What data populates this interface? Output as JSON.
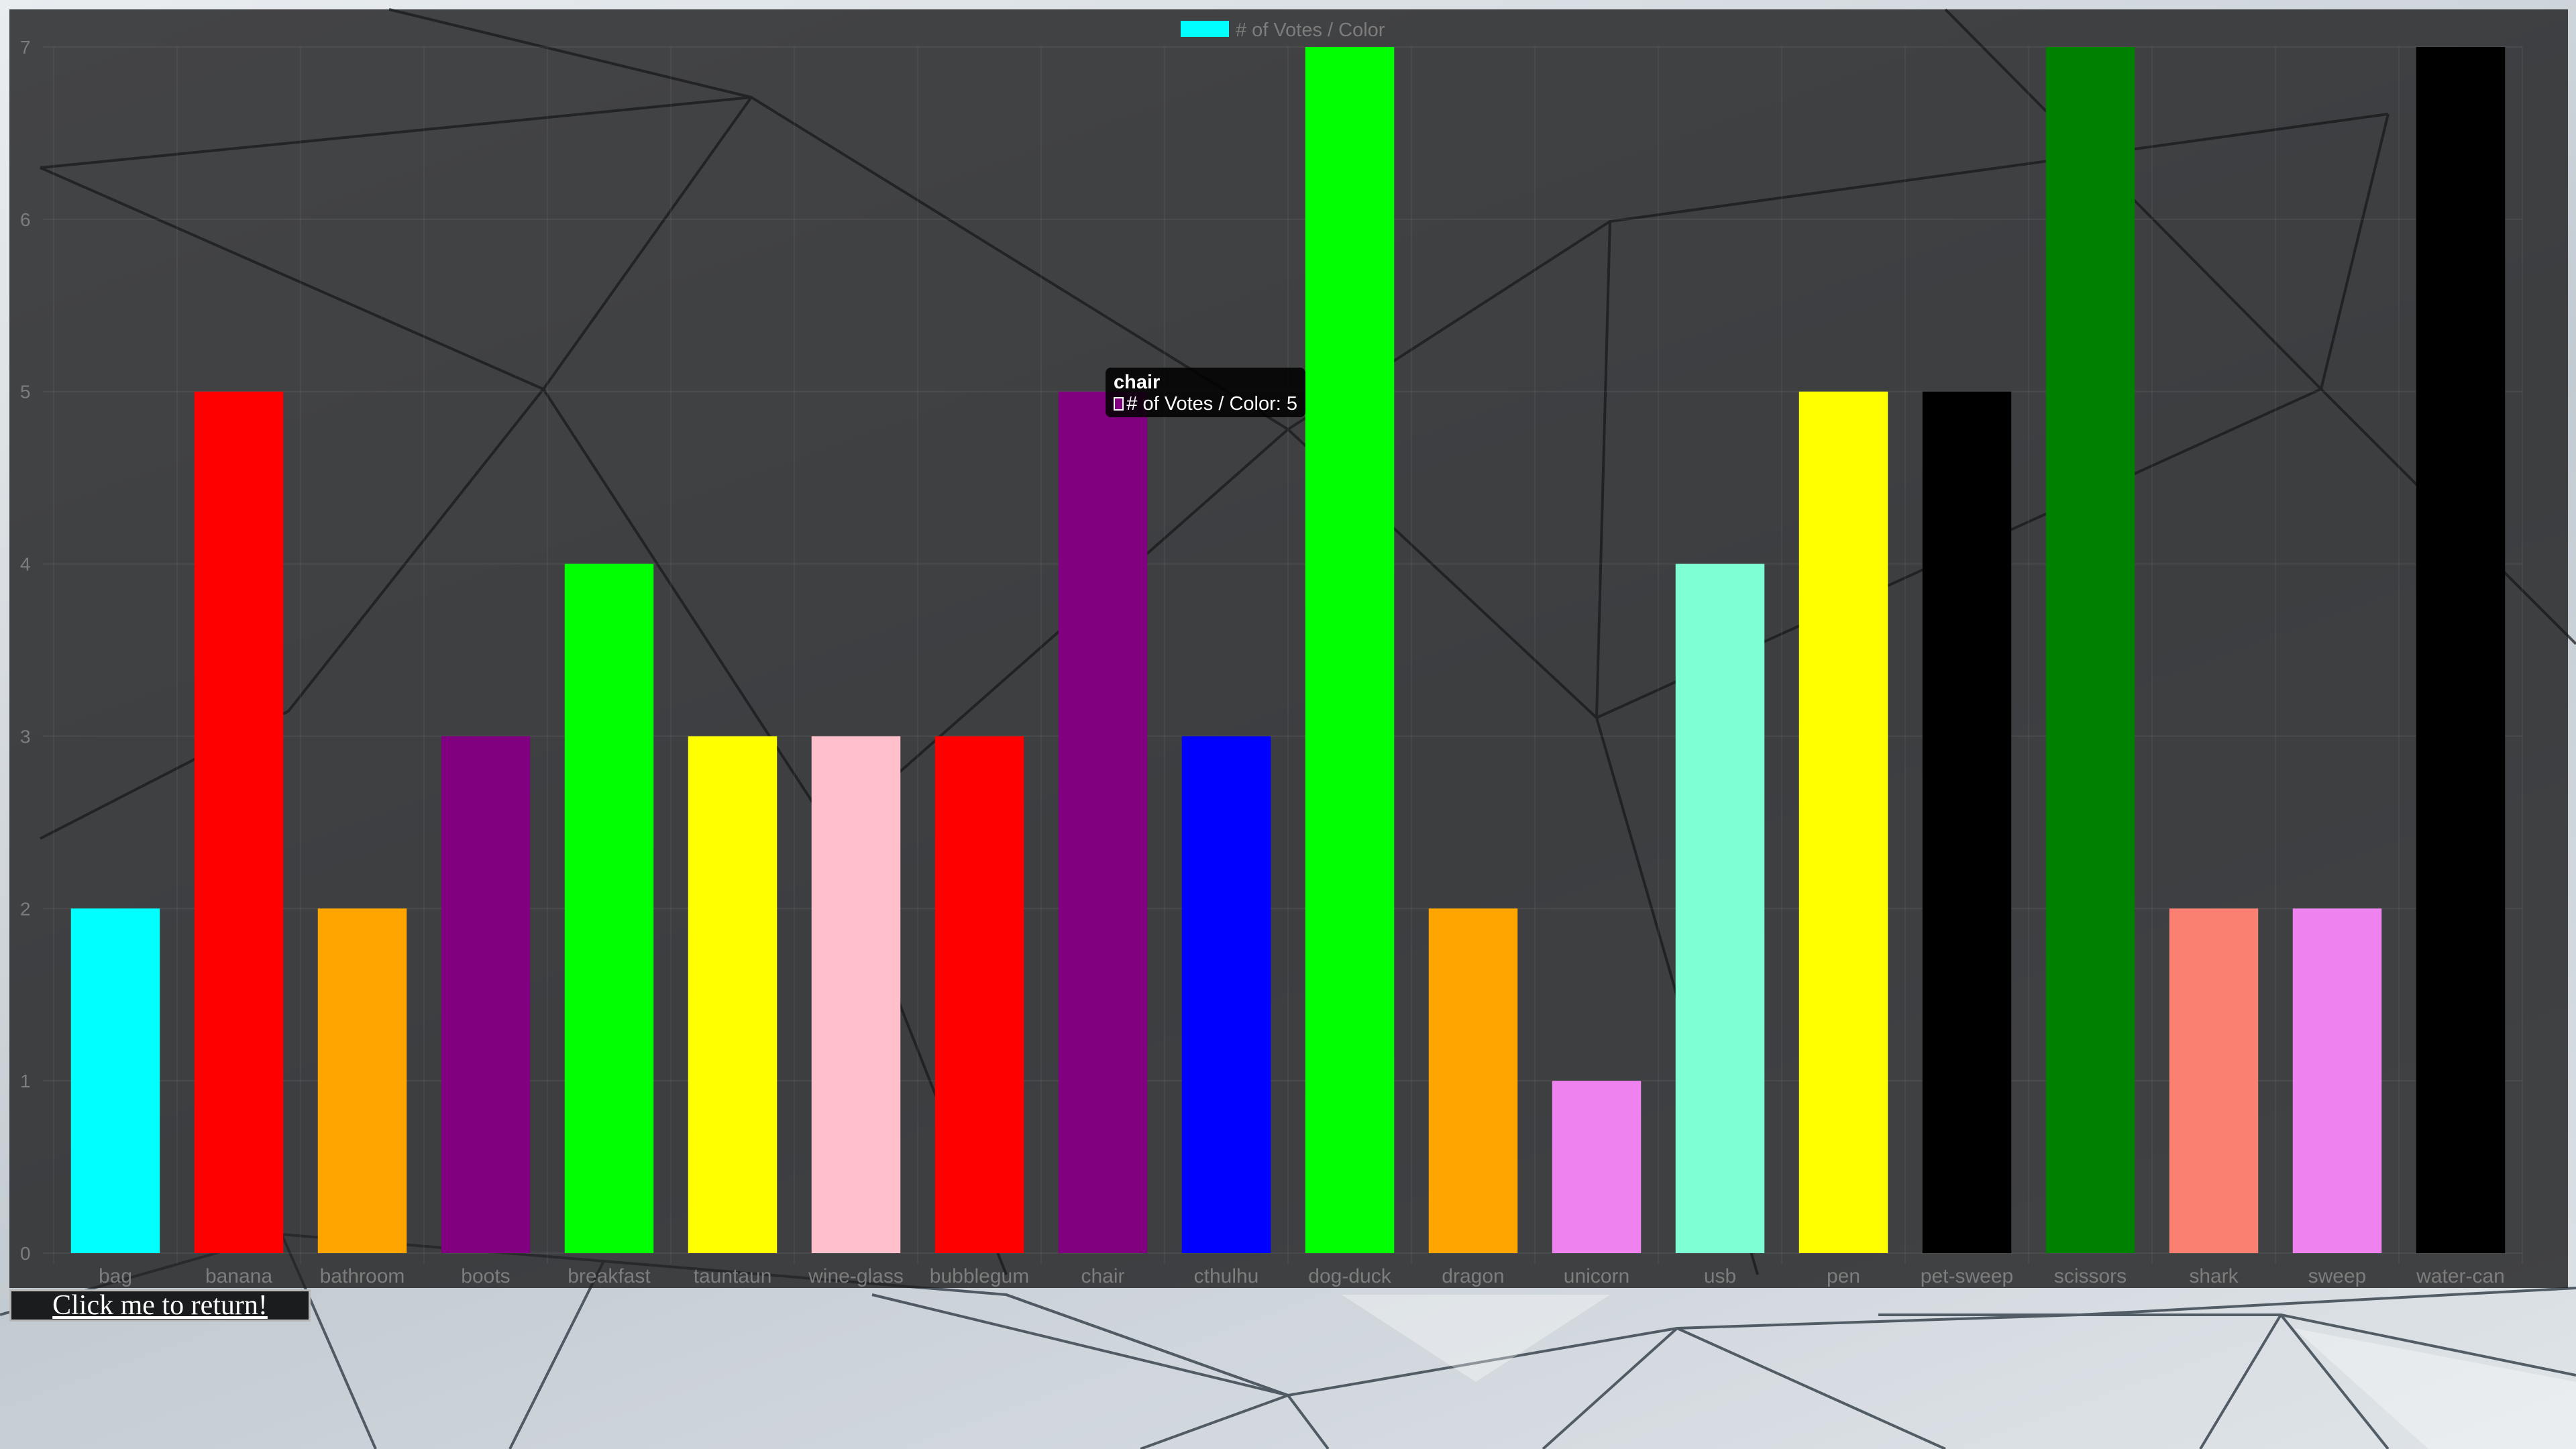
{
  "chart_data": {
    "type": "bar",
    "title": "",
    "xlabel": "",
    "ylabel": "",
    "ylim": [
      0,
      7
    ],
    "yticks": [
      "0",
      "1",
      "2",
      "3",
      "4",
      "5",
      "6",
      "7"
    ],
    "grid": true,
    "legend_position": "top-center",
    "categories": [
      "bag",
      "banana",
      "bathroom",
      "boots",
      "breakfast",
      "tauntaun",
      "wine-glass",
      "bubblegum",
      "chair",
      "cthulhu",
      "dog-duck",
      "dragon",
      "unicorn",
      "usb",
      "pen",
      "pet-sweep",
      "scissors",
      "shark",
      "sweep",
      "water-can"
    ],
    "series": [
      {
        "name": "# of Votes / Color",
        "legend_color": "#00ffff",
        "values": [
          2,
          5,
          2,
          3,
          4,
          3,
          3,
          3,
          5,
          3,
          7,
          2,
          1,
          4,
          5,
          5,
          7,
          2,
          2,
          7
        ],
        "colors": [
          "#00ffff",
          "#ff0000",
          "#ffa500",
          "#800080",
          "#00ff00",
          "#ffff00",
          "#ffc0cb",
          "#ff0000",
          "#800080",
          "#0000ff",
          "#00ff00",
          "#ffa500",
          "#ee82ee",
          "#7fffd4",
          "#ffff00",
          "#000000",
          "#008000",
          "#fa8072",
          "#ee82ee",
          "#000000"
        ]
      }
    ],
    "hovered_index": 8
  },
  "tooltip": {
    "title": "chair",
    "line": "# of Votes / Color: 5",
    "swatch_color": "#800080"
  },
  "return_button": {
    "label": "Click me to return!"
  }
}
